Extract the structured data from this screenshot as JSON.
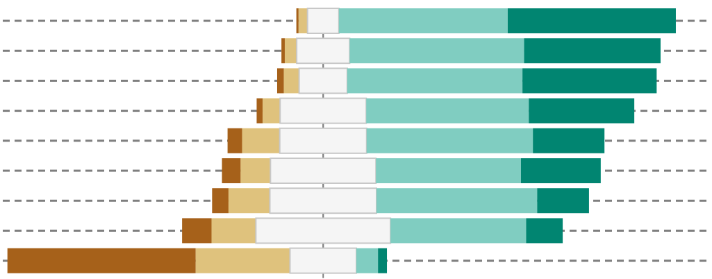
{
  "chart_data": {
    "type": "bar",
    "layout": "diverging-stacked-horizontal",
    "categories": [],
    "segments": [
      {
        "key": "s1",
        "color": "#a6611a"
      },
      {
        "key": "s2",
        "color": "#dfc27d"
      },
      {
        "key": "s3",
        "color": "#f5f5f5",
        "stroke": "#c8c8c8"
      },
      {
        "key": "s4",
        "color": "#80cdc1"
      },
      {
        "key": "s5",
        "color": "#018571"
      }
    ],
    "rows": [
      [
        0.6,
        2.4,
        8.4,
        45.3,
        45.1
      ],
      [
        0.9,
        3.2,
        14.2,
        46.8,
        36.6
      ],
      [
        1.8,
        4.1,
        12.9,
        47.0,
        36.0
      ],
      [
        1.6,
        4.7,
        23.1,
        43.6,
        28.3
      ],
      [
        3.9,
        10.1,
        23.3,
        44.6,
        19.2
      ],
      [
        5.0,
        8.0,
        28.3,
        38.9,
        21.4
      ],
      [
        4.4,
        11.1,
        28.6,
        43.1,
        13.9
      ],
      [
        7.9,
        11.9,
        36.1,
        36.4,
        9.8
      ],
      [
        50.5,
        25.3,
        17.8,
        5.8,
        2.4
      ]
    ],
    "xlim": [
      -85.2,
      101.5
    ],
    "grid": true,
    "grid_style": "dashed-horizontal",
    "center_axis": true,
    "legend": "none",
    "title": "",
    "xlabel": "",
    "ylabel": ""
  }
}
